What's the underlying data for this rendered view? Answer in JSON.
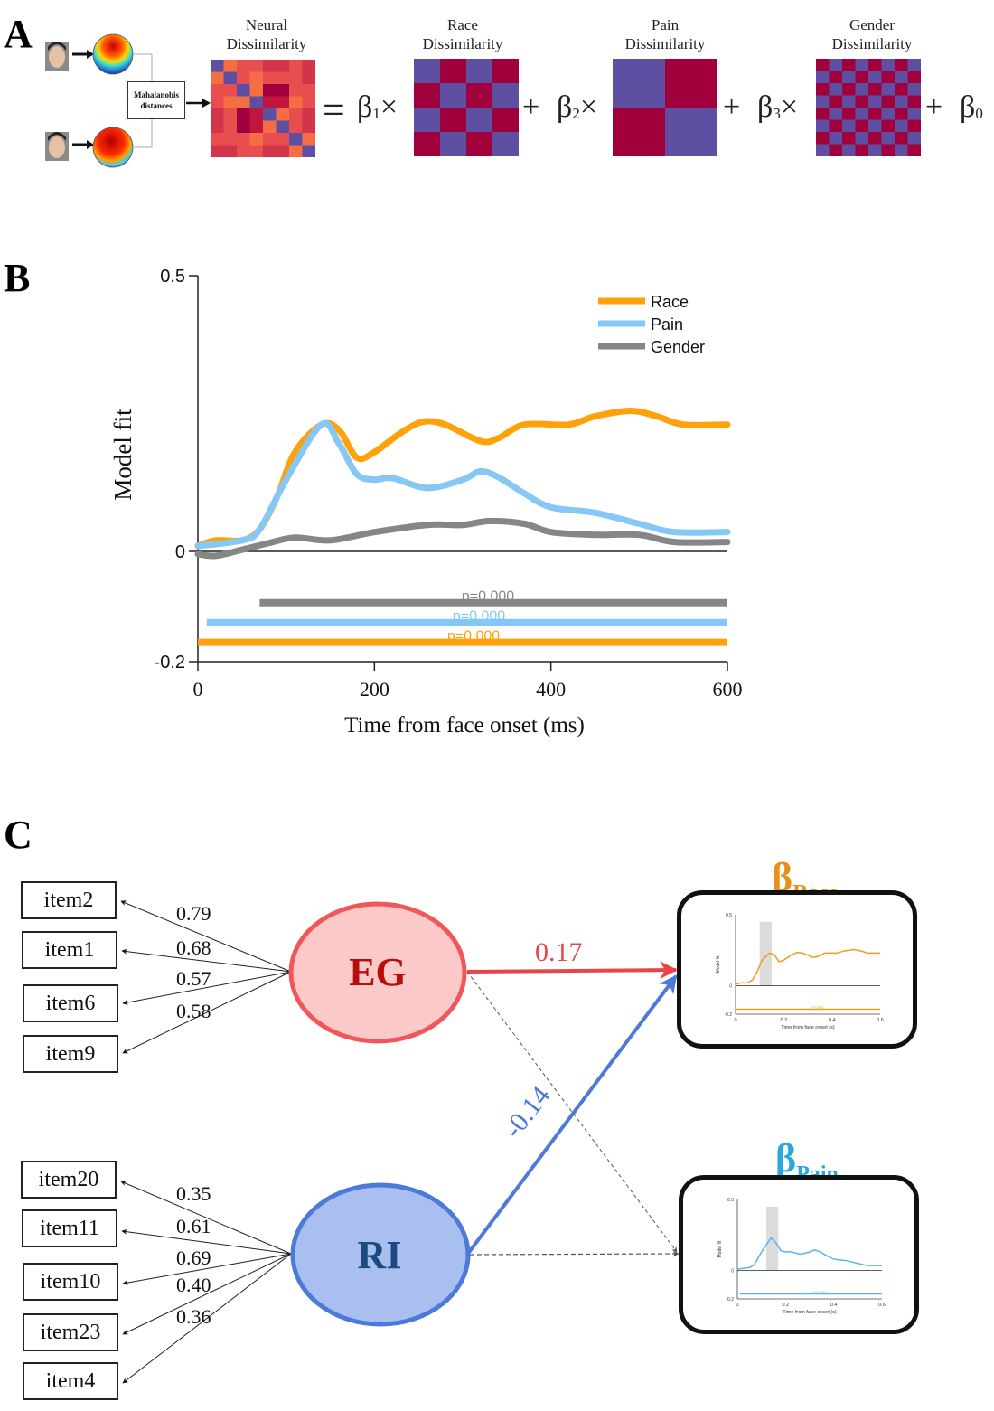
{
  "panel_a": {
    "letter": "A",
    "mahalanobis_label_1": "Mahalanobis",
    "mahalanobis_label_2": "distances",
    "matrices": [
      {
        "title_1": "Neural",
        "title_2": "Dissimilarity"
      },
      {
        "title_1": "Race",
        "title_2": "Dissimilarity"
      },
      {
        "title_1": "Pain",
        "title_2": "Dissimilarity"
      },
      {
        "title_1": "Gender",
        "title_2": "Dissimilarity"
      }
    ],
    "equation": {
      "equals": "=",
      "beta": "β",
      "times": "×",
      "plus": "+",
      "sub_1": "1",
      "sub_2": "2",
      "sub_3": "3",
      "sub_0": "0"
    },
    "colors": {
      "high": "#a0003c",
      "low": "#5e4fa2",
      "mid": "#e94e4e",
      "orange": "#f46d43"
    },
    "neural_matrix": [
      [
        0,
        6,
        7,
        7,
        8,
        8,
        7,
        8
      ],
      [
        6,
        0,
        7,
        6,
        7,
        7,
        7,
        8
      ],
      [
        7,
        7,
        0,
        6,
        10,
        10,
        7,
        7
      ],
      [
        7,
        6,
        6,
        0,
        9,
        9,
        6,
        7
      ],
      [
        8,
        7,
        10,
        9,
        0,
        6,
        7,
        8
      ],
      [
        8,
        7,
        10,
        9,
        6,
        0,
        7,
        8
      ],
      [
        7,
        7,
        7,
        6,
        7,
        7,
        0,
        6
      ],
      [
        8,
        8,
        7,
        7,
        8,
        8,
        6,
        0
      ]
    ]
  },
  "panel_b": {
    "letter": "B",
    "legend": [
      "Race",
      "Pain",
      "Gender"
    ],
    "sig_labels": [
      "p=0.000",
      "p=0.000",
      "p=0.000"
    ]
  },
  "chart_data": {
    "type": "line",
    "title": "",
    "xlabel": "Time from face onset (ms)",
    "ylabel": "Model fit",
    "xlim": [
      0,
      600
    ],
    "ylim": [
      -0.2,
      0.5
    ],
    "xticks": [
      0,
      200,
      400,
      600
    ],
    "xtick_labels": [
      "0",
      "200",
      "400",
      "600"
    ],
    "yticks": [
      -0.2,
      0,
      0.5
    ],
    "ytick_labels": [
      "-0.2",
      "0",
      "0.5"
    ],
    "grid": false,
    "legend_position": "top-right",
    "series": [
      {
        "name": "Race",
        "color": "#ffa10a",
        "x": [
          0,
          20,
          50,
          70,
          90,
          110,
          140,
          160,
          180,
          200,
          230,
          255,
          280,
          320,
          340,
          370,
          420,
          450,
          490,
          520,
          550,
          600
        ],
        "y": [
          0.01,
          0.02,
          0.02,
          0.04,
          0.1,
          0.18,
          0.23,
          0.22,
          0.17,
          0.18,
          0.215,
          0.235,
          0.23,
          0.2,
          0.205,
          0.23,
          0.23,
          0.245,
          0.255,
          0.245,
          0.23,
          0.23
        ],
        "significance": {
          "label": "p=0.000",
          "start": 0,
          "end": 600,
          "level": -0.165
        }
      },
      {
        "name": "Pain",
        "color": "#85c8f5",
        "x": [
          0,
          50,
          70,
          100,
          140,
          160,
          180,
          200,
          220,
          260,
          300,
          320,
          340,
          370,
          400,
          450,
          500,
          540,
          600
        ],
        "y": [
          0.01,
          0.02,
          0.04,
          0.13,
          0.23,
          0.195,
          0.14,
          0.13,
          0.133,
          0.115,
          0.13,
          0.145,
          0.135,
          0.105,
          0.08,
          0.07,
          0.05,
          0.035,
          0.035
        ],
        "significance": {
          "label": "p=0.000",
          "start": 10,
          "end": 600,
          "level": -0.129
        }
      },
      {
        "name": "Gender",
        "color": "#868686",
        "x": [
          0,
          20,
          50,
          80,
          110,
          150,
          200,
          260,
          300,
          330,
          370,
          400,
          450,
          500,
          540,
          600
        ],
        "y": [
          -0.005,
          -0.008,
          0.003,
          0.015,
          0.025,
          0.02,
          0.035,
          0.048,
          0.048,
          0.055,
          0.05,
          0.035,
          0.03,
          0.03,
          0.017,
          0.017
        ],
        "significance": {
          "label": "p=0.000",
          "start": 70,
          "end": 600,
          "level": -0.093
        }
      }
    ]
  },
  "panel_c": {
    "letter": "C",
    "latents": [
      {
        "name": "EG",
        "color": "#f0575a",
        "fill": "#fcc9c9",
        "text_color": "#b80d0d"
      },
      {
        "name": "RI",
        "color": "#4d7ad8",
        "fill": "#a8bff0",
        "text_color": "#1a4a80"
      }
    ],
    "eg_items": [
      {
        "label": "item2",
        "loading": "0.79"
      },
      {
        "label": "item1",
        "loading": "0.68"
      },
      {
        "label": "item6",
        "loading": "0.57"
      },
      {
        "label": "item9",
        "loading": "0.58"
      }
    ],
    "ri_items": [
      {
        "label": "item20",
        "loading": "0.35"
      },
      {
        "label": "item11",
        "loading": "0.61"
      },
      {
        "label": "item10",
        "loading": "0.69"
      },
      {
        "label": "item23",
        "loading": "0.40"
      },
      {
        "label": "item4",
        "loading": "0.36"
      }
    ],
    "paths": {
      "eg_to_race": "0.17",
      "ri_to_race": "-0.14"
    },
    "outcomes": [
      {
        "beta": "β",
        "sub": "Race",
        "color": "#e8901a"
      },
      {
        "beta": "β",
        "sub": "Pain",
        "color": "#29a8e0"
      }
    ],
    "mini_chart": {
      "ylabel": "Model fit",
      "xlabel": "Time from face onset (s)",
      "xtick_labels": [
        "0",
        "0.2",
        "0.4",
        "0.6"
      ],
      "ytick_labels": [
        "-0.2",
        "0",
        "0.5"
      ],
      "sig_label": "p=0.000",
      "race_window_s": [
        0.1,
        0.15
      ],
      "pain_window_s": [
        0.12,
        0.17
      ]
    }
  }
}
